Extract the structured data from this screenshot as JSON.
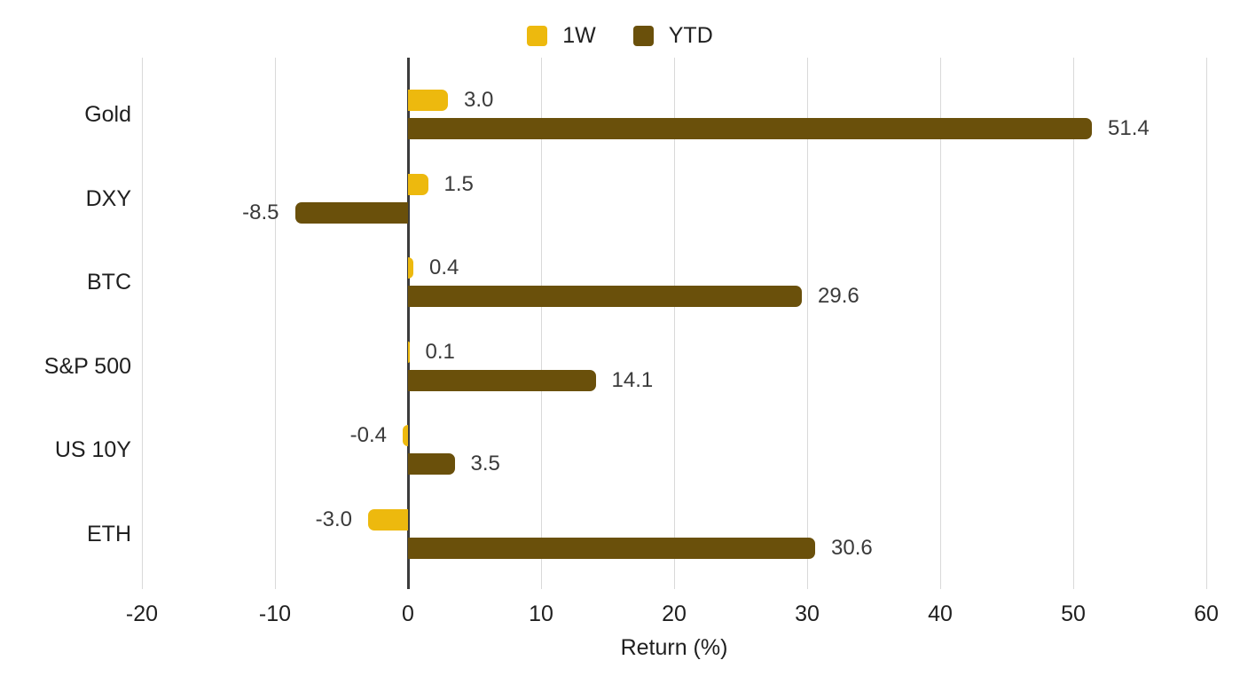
{
  "chart_data": {
    "type": "bar",
    "orientation": "horizontal",
    "title": "",
    "xlabel": "Return (%)",
    "ylabel": "",
    "categories": [
      "Gold",
      "DXY",
      "BTC",
      "S&P 500",
      "US 10Y",
      "ETH"
    ],
    "series": [
      {
        "name": "1W",
        "color": "#EDB90E",
        "values": [
          3.0,
          1.5,
          0.4,
          0.1,
          -0.4,
          -3.0
        ],
        "value_labels": [
          "3.0",
          "1.5",
          "0.4",
          "0.1",
          "-0.4",
          "-3.0"
        ]
      },
      {
        "name": "YTD",
        "color": "#6A500B",
        "values": [
          51.4,
          -8.5,
          29.6,
          14.1,
          3.5,
          30.6
        ],
        "value_labels": [
          "51.4",
          "-8.5",
          "29.6",
          "14.1",
          "3.5",
          "30.6"
        ]
      }
    ],
    "xlim": [
      -20,
      60
    ],
    "xticks": [
      -20,
      -10,
      0,
      10,
      20,
      30,
      40,
      50,
      60
    ],
    "xtick_labels": [
      "-20",
      "-10",
      "0",
      "10",
      "20",
      "30",
      "40",
      "50",
      "60"
    ],
    "grid": true,
    "legend_position": "top"
  },
  "colors": {
    "background": "#ffffff",
    "series_1w": "#EDB90E",
    "series_ytd": "#6A500B",
    "gridline": "#D9D9D9",
    "zero_axis": "#3C3C3C",
    "axis_text": "#1F1F1F",
    "value_text": "#3A3A3A"
  }
}
